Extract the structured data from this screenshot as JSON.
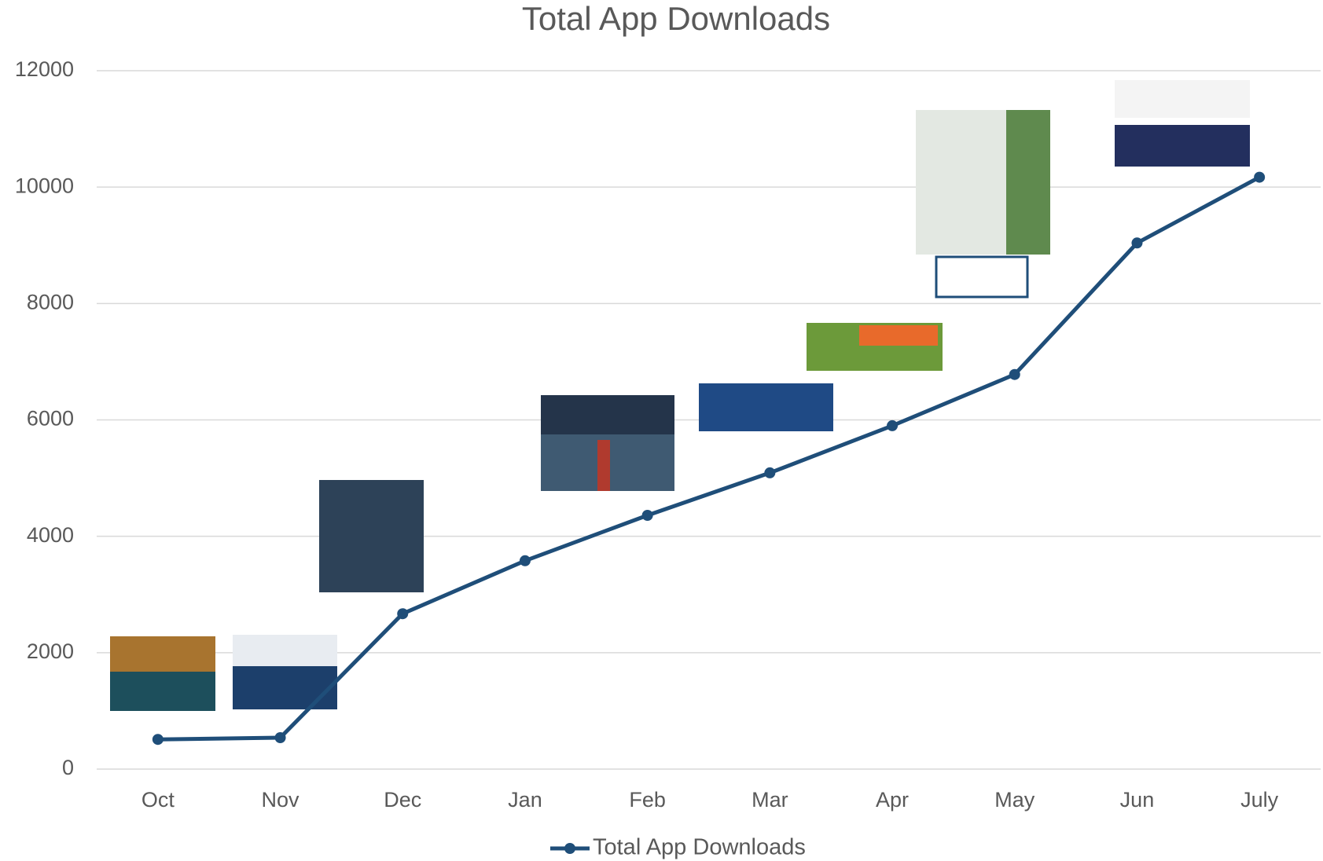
{
  "chart_data": {
    "type": "line",
    "title": "Total App Downloads",
    "categories": [
      "Oct",
      "Nov",
      "Dec",
      "Jan",
      "Feb",
      "Mar",
      "Apr",
      "May",
      "Jun",
      "July"
    ],
    "series": [
      {
        "name": "Total App Downloads",
        "color": "#1f4e79",
        "values": [
          510,
          540,
          2670,
          3580,
          4360,
          5090,
          5900,
          6780,
          9040,
          10170
        ]
      }
    ],
    "ylim": [
      0,
      12000
    ],
    "yticks": [
      0,
      2000,
      4000,
      6000,
      8000,
      10000,
      12000
    ],
    "grid": true,
    "legend": "bottom"
  }
}
